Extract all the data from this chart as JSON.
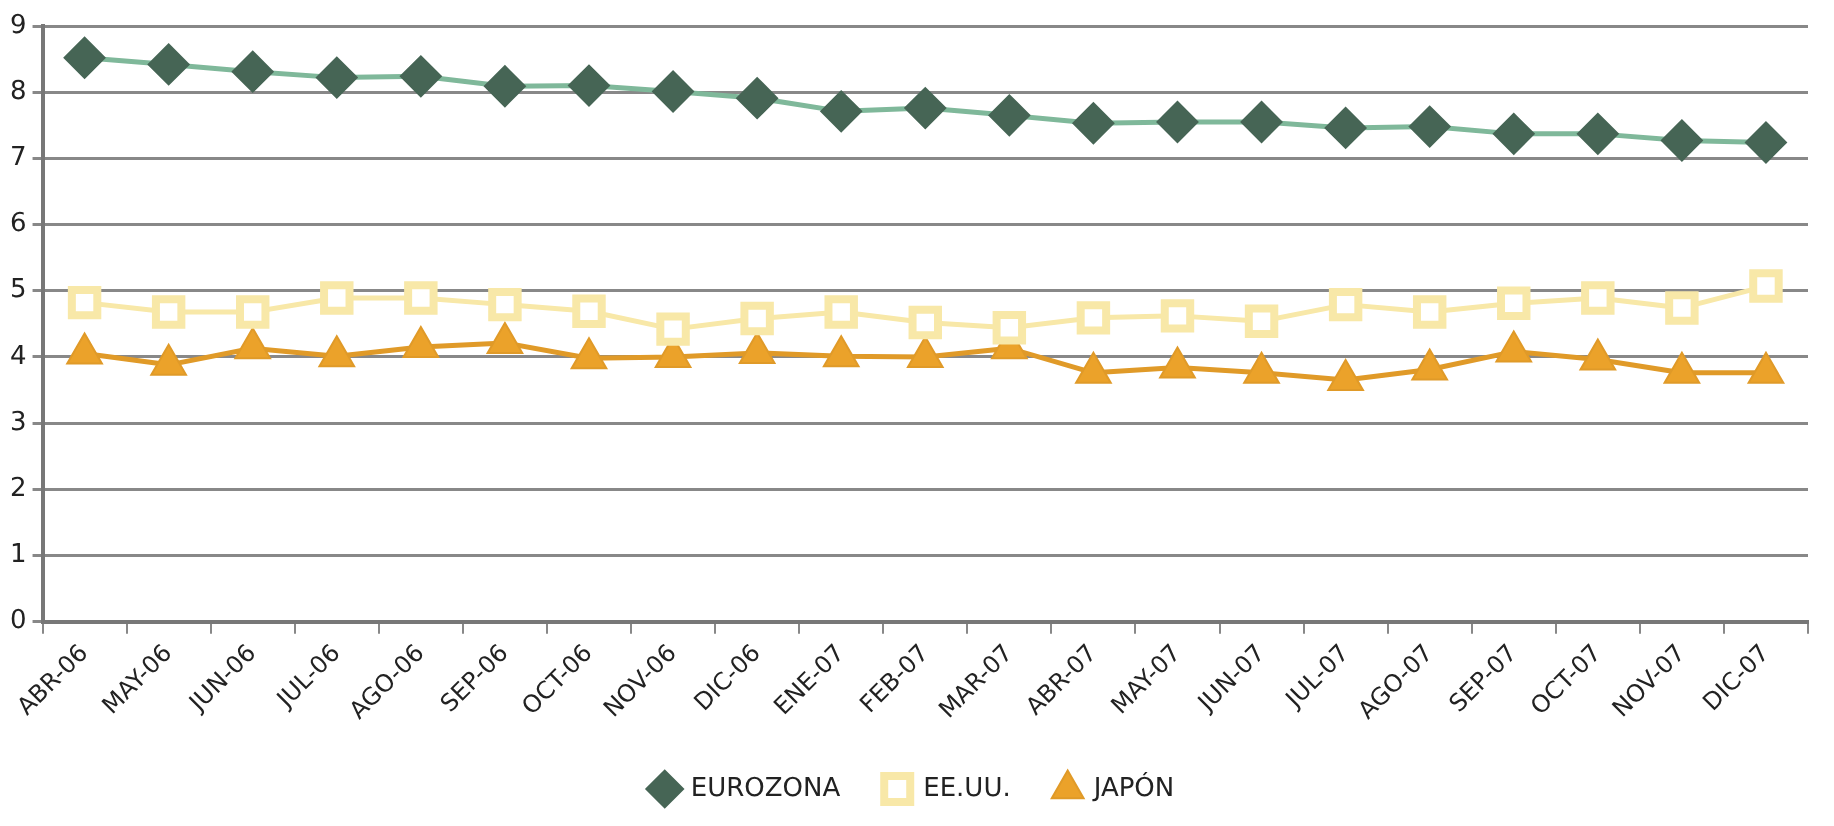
{
  "chart_data": {
    "type": "line",
    "categories": [
      "ABR-06",
      "MAY-06",
      "JUN-06",
      "JUL-06",
      "AGO-06",
      "SEP-06",
      "OCT-06",
      "NOV-06",
      "DIC-06",
      "ENE-07",
      "FEB-07",
      "MAR-07",
      "ABR-07",
      "MAY-07",
      "JUN-07",
      "JUL-07",
      "AGO-07",
      "SEP-07",
      "OCT-07",
      "NOV-07",
      "DIC-07"
    ],
    "series": [
      {
        "name": "EUROZONA",
        "color": "#7fb89a",
        "marker": "diamond",
        "values": [
          8.52,
          8.42,
          8.31,
          8.22,
          8.24,
          8.09,
          8.1,
          8.01,
          7.91,
          7.71,
          7.76,
          7.65,
          7.53,
          7.55,
          7.55,
          7.46,
          7.48,
          7.37,
          7.37,
          7.27,
          7.24
        ]
      },
      {
        "name": "EE.UU.",
        "color": "#f8e8a8",
        "marker": "square",
        "values": [
          4.82,
          4.68,
          4.68,
          4.89,
          4.89,
          4.79,
          4.69,
          4.42,
          4.58,
          4.68,
          4.52,
          4.44,
          4.59,
          4.62,
          4.54,
          4.79,
          4.68,
          4.81,
          4.89,
          4.74,
          5.07
        ]
      },
      {
        "name": "JAPÓN",
        "color": "#e09a28",
        "marker": "triangle",
        "values": [
          4.05,
          3.88,
          4.13,
          4.01,
          4.15,
          4.21,
          3.98,
          4.0,
          4.06,
          4.01,
          4.0,
          4.13,
          3.76,
          3.84,
          3.76,
          3.65,
          3.81,
          4.08,
          3.96,
          3.76,
          3.76
        ]
      }
    ],
    "ylim": [
      0,
      9
    ],
    "yticks": [
      0,
      1,
      2,
      3,
      4,
      5,
      6,
      7,
      8,
      9
    ],
    "grid": "y",
    "legend": "bottom"
  }
}
